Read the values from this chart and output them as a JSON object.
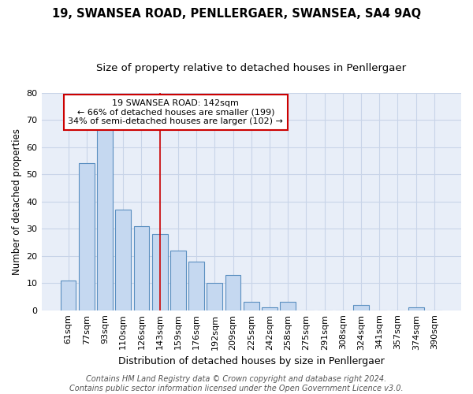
{
  "title": "19, SWANSEA ROAD, PENLLERGAER, SWANSEA, SA4 9AQ",
  "subtitle": "Size of property relative to detached houses in Penllergaer",
  "xlabel": "Distribution of detached houses by size in Penllergaer",
  "ylabel": "Number of detached properties",
  "categories": [
    "61sqm",
    "77sqm",
    "93sqm",
    "110sqm",
    "126sqm",
    "143sqm",
    "159sqm",
    "176sqm",
    "192sqm",
    "209sqm",
    "225sqm",
    "242sqm",
    "258sqm",
    "275sqm",
    "291sqm",
    "308sqm",
    "324sqm",
    "341sqm",
    "357sqm",
    "374sqm",
    "390sqm"
  ],
  "values": [
    11,
    54,
    68,
    37,
    31,
    28,
    22,
    18,
    10,
    13,
    3,
    1,
    3,
    0,
    0,
    0,
    2,
    0,
    0,
    1,
    0
  ],
  "bar_color": "#c5d8f0",
  "bar_edge_color": "#5a8fc0",
  "highlight_index": 5,
  "highlight_line_color": "#cc0000",
  "annotation_box_text": "19 SWANSEA ROAD: 142sqm\n← 66% of detached houses are smaller (199)\n34% of semi-detached houses are larger (102) →",
  "annotation_box_color": "#ffffff",
  "annotation_box_edge_color": "#cc0000",
  "ylim": [
    0,
    80
  ],
  "yticks": [
    0,
    10,
    20,
    30,
    40,
    50,
    60,
    70,
    80
  ],
  "grid_color": "#c8d4e8",
  "bg_color": "#e8eef8",
  "footer": "Contains HM Land Registry data © Crown copyright and database right 2024.\nContains public sector information licensed under the Open Government Licence v3.0.",
  "title_fontsize": 10.5,
  "subtitle_fontsize": 9.5,
  "xlabel_fontsize": 9,
  "ylabel_fontsize": 8.5,
  "tick_fontsize": 8,
  "annot_fontsize": 8,
  "footer_fontsize": 7
}
